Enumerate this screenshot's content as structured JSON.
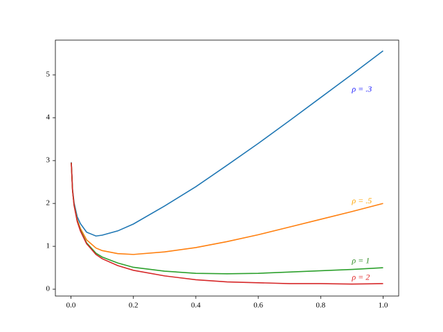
{
  "chart_data": {
    "type": "line",
    "x": [
      0.001,
      0.005,
      0.01,
      0.02,
      0.03,
      0.05,
      0.08,
      0.1,
      0.15,
      0.2,
      0.3,
      0.4,
      0.5,
      0.6,
      0.7,
      0.8,
      0.9,
      1.0
    ],
    "series": [
      {
        "color": "#1f77b4",
        "values": [
          2.96,
          2.33,
          2.01,
          1.69,
          1.53,
          1.33,
          1.24,
          1.26,
          1.36,
          1.52,
          1.94,
          2.39,
          2.89,
          3.4,
          3.93,
          4.47,
          5.01,
          5.56
        ]
      },
      {
        "color": "#ff7f0e",
        "values": [
          2.95,
          2.31,
          1.97,
          1.62,
          1.42,
          1.15,
          0.96,
          0.9,
          0.83,
          0.81,
          0.87,
          0.97,
          1.11,
          1.27,
          1.45,
          1.63,
          1.81,
          2.0
        ]
      },
      {
        "color": "#2ca02c",
        "values": [
          2.95,
          2.3,
          1.96,
          1.59,
          1.38,
          1.08,
          0.84,
          0.75,
          0.61,
          0.51,
          0.42,
          0.37,
          0.36,
          0.37,
          0.4,
          0.43,
          0.46,
          0.5
        ]
      },
      {
        "color": "#d62728",
        "values": [
          2.95,
          2.3,
          1.95,
          1.58,
          1.36,
          1.06,
          0.81,
          0.71,
          0.55,
          0.44,
          0.31,
          0.22,
          0.17,
          0.15,
          0.13,
          0.13,
          0.12,
          0.13
        ]
      }
    ],
    "annotations": [
      {
        "text": "ρ = .3",
        "x": 0.9,
        "y": 4.65,
        "color": "#1a1aff"
      },
      {
        "text": "ρ = .5",
        "x": 0.9,
        "y": 2.05,
        "color": "#ffa500"
      },
      {
        "text": "ρ = 1",
        "x": 0.9,
        "y": 0.65,
        "color": "#2e8b22"
      },
      {
        "text": "ρ = 2",
        "x": 0.9,
        "y": 0.26,
        "color": "#e02020"
      }
    ],
    "xlim": [
      -0.05,
      1.05
    ],
    "ylim": [
      -0.16,
      5.81
    ],
    "xticks": [
      {
        "value": 0,
        "label": "0.0"
      },
      0.2,
      0.4,
      0.6,
      0.8,
      {
        "value": 1,
        "label": "1.0"
      }
    ],
    "yticks": [
      0,
      1,
      2,
      3,
      4,
      5
    ],
    "grid": false
  }
}
